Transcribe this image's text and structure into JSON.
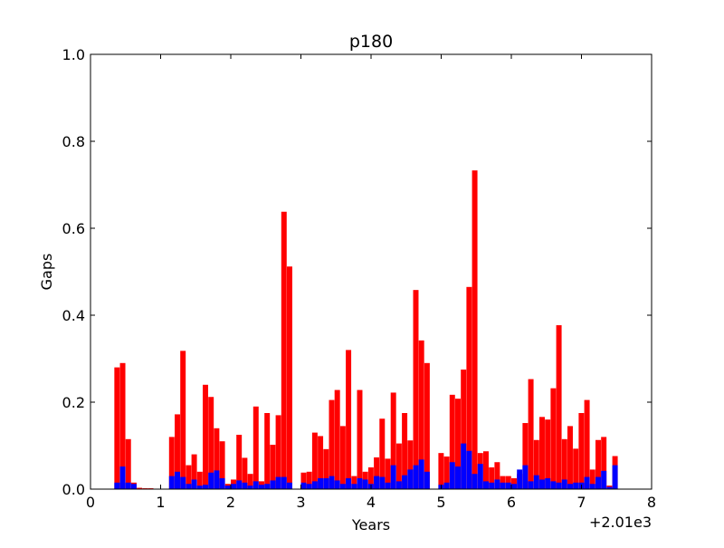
{
  "chart_data": {
    "type": "bar",
    "title": "p180",
    "xlabel": "Years",
    "ylabel": "Gaps",
    "x_offset_label": "+2.01e3",
    "xlim": [
      0,
      8
    ],
    "ylim": [
      0,
      1.0
    ],
    "x_ticks": [
      0,
      1,
      2,
      3,
      4,
      5,
      6,
      7,
      8
    ],
    "x_tick_labels": [
      "0",
      "1",
      "2",
      "3",
      "4",
      "5",
      "6",
      "7",
      "8"
    ],
    "y_ticks": [
      0.0,
      0.2,
      0.4,
      0.6,
      0.8,
      1.0
    ],
    "y_tick_labels": [
      "0.0",
      "0.2",
      "0.4",
      "0.6",
      "0.8",
      "1.0"
    ],
    "bin_width": 0.077,
    "grid": false,
    "series": [
      {
        "color": "#ff0000",
        "points": [
          [
            0.34,
            0.28
          ],
          [
            0.42,
            0.29
          ],
          [
            0.5,
            0.115
          ],
          [
            0.58,
            0.015
          ],
          [
            0.66,
            0.003
          ],
          [
            0.74,
            0.002
          ],
          [
            0.82,
            0.002
          ],
          [
            1.12,
            0.12
          ],
          [
            1.2,
            0.172
          ],
          [
            1.28,
            0.318
          ],
          [
            1.36,
            0.055
          ],
          [
            1.44,
            0.08
          ],
          [
            1.52,
            0.04
          ],
          [
            1.6,
            0.24
          ],
          [
            1.68,
            0.212
          ],
          [
            1.76,
            0.14
          ],
          [
            1.84,
            0.11
          ],
          [
            1.92,
            0.012
          ],
          [
            2.0,
            0.022
          ],
          [
            2.08,
            0.125
          ],
          [
            2.16,
            0.072
          ],
          [
            2.24,
            0.035
          ],
          [
            2.32,
            0.19
          ],
          [
            2.4,
            0.018
          ],
          [
            2.48,
            0.175
          ],
          [
            2.56,
            0.102
          ],
          [
            2.64,
            0.17
          ],
          [
            2.72,
            0.638
          ],
          [
            2.8,
            0.512
          ],
          [
            3.0,
            0.038
          ],
          [
            3.08,
            0.04
          ],
          [
            3.16,
            0.13
          ],
          [
            3.24,
            0.122
          ],
          [
            3.32,
            0.092
          ],
          [
            3.4,
            0.205
          ],
          [
            3.48,
            0.228
          ],
          [
            3.56,
            0.145
          ],
          [
            3.64,
            0.32
          ],
          [
            3.72,
            0.03
          ],
          [
            3.8,
            0.228
          ],
          [
            3.88,
            0.04
          ],
          [
            3.96,
            0.05
          ],
          [
            4.04,
            0.073
          ],
          [
            4.12,
            0.162
          ],
          [
            4.2,
            0.07
          ],
          [
            4.28,
            0.222
          ],
          [
            4.36,
            0.105
          ],
          [
            4.44,
            0.175
          ],
          [
            4.52,
            0.112
          ],
          [
            4.6,
            0.458
          ],
          [
            4.68,
            0.342
          ],
          [
            4.76,
            0.29
          ],
          [
            4.96,
            0.083
          ],
          [
            5.04,
            0.075
          ],
          [
            5.12,
            0.217
          ],
          [
            5.2,
            0.208
          ],
          [
            5.28,
            0.275
          ],
          [
            5.36,
            0.465
          ],
          [
            5.44,
            0.733
          ],
          [
            5.52,
            0.083
          ],
          [
            5.6,
            0.087
          ],
          [
            5.68,
            0.05
          ],
          [
            5.76,
            0.062
          ],
          [
            5.84,
            0.03
          ],
          [
            5.92,
            0.03
          ],
          [
            6.0,
            0.025
          ],
          [
            6.08,
            0.035
          ],
          [
            6.16,
            0.152
          ],
          [
            6.24,
            0.253
          ],
          [
            6.32,
            0.113
          ],
          [
            6.4,
            0.166
          ],
          [
            6.48,
            0.16
          ],
          [
            6.56,
            0.232
          ],
          [
            6.64,
            0.377
          ],
          [
            6.72,
            0.115
          ],
          [
            6.8,
            0.145
          ],
          [
            6.88,
            0.093
          ],
          [
            6.96,
            0.175
          ],
          [
            7.04,
            0.205
          ],
          [
            7.12,
            0.045
          ],
          [
            7.2,
            0.113
          ],
          [
            7.28,
            0.12
          ],
          [
            7.36,
            0.008
          ],
          [
            7.44,
            0.076
          ]
        ]
      },
      {
        "color": "#0000ff",
        "points": [
          [
            0.34,
            0.015
          ],
          [
            0.42,
            0.052
          ],
          [
            0.5,
            0.015
          ],
          [
            0.58,
            0.012
          ],
          [
            1.12,
            0.03
          ],
          [
            1.2,
            0.04
          ],
          [
            1.28,
            0.028
          ],
          [
            1.36,
            0.012
          ],
          [
            1.44,
            0.022
          ],
          [
            1.52,
            0.008
          ],
          [
            1.6,
            0.01
          ],
          [
            1.68,
            0.038
          ],
          [
            1.76,
            0.043
          ],
          [
            1.84,
            0.025
          ],
          [
            1.92,
            0.008
          ],
          [
            2.0,
            0.012
          ],
          [
            2.08,
            0.02
          ],
          [
            2.16,
            0.015
          ],
          [
            2.24,
            0.008
          ],
          [
            2.32,
            0.018
          ],
          [
            2.4,
            0.01
          ],
          [
            2.48,
            0.012
          ],
          [
            2.56,
            0.02
          ],
          [
            2.64,
            0.028
          ],
          [
            2.72,
            0.028
          ],
          [
            2.8,
            0.015
          ],
          [
            3.0,
            0.015
          ],
          [
            3.08,
            0.012
          ],
          [
            3.16,
            0.018
          ],
          [
            3.24,
            0.025
          ],
          [
            3.32,
            0.025
          ],
          [
            3.4,
            0.03
          ],
          [
            3.48,
            0.02
          ],
          [
            3.56,
            0.012
          ],
          [
            3.64,
            0.025
          ],
          [
            3.72,
            0.012
          ],
          [
            3.8,
            0.025
          ],
          [
            3.88,
            0.022
          ],
          [
            3.96,
            0.012
          ],
          [
            4.04,
            0.03
          ],
          [
            4.12,
            0.028
          ],
          [
            4.2,
            0.015
          ],
          [
            4.28,
            0.055
          ],
          [
            4.36,
            0.018
          ],
          [
            4.44,
            0.032
          ],
          [
            4.52,
            0.045
          ],
          [
            4.6,
            0.055
          ],
          [
            4.68,
            0.068
          ],
          [
            4.76,
            0.04
          ],
          [
            4.96,
            0.01
          ],
          [
            5.04,
            0.015
          ],
          [
            5.12,
            0.062
          ],
          [
            5.2,
            0.052
          ],
          [
            5.28,
            0.105
          ],
          [
            5.36,
            0.088
          ],
          [
            5.44,
            0.035
          ],
          [
            5.52,
            0.058
          ],
          [
            5.6,
            0.018
          ],
          [
            5.68,
            0.015
          ],
          [
            5.76,
            0.022
          ],
          [
            5.84,
            0.015
          ],
          [
            5.92,
            0.015
          ],
          [
            6.0,
            0.012
          ],
          [
            6.08,
            0.045
          ],
          [
            6.16,
            0.055
          ],
          [
            6.24,
            0.018
          ],
          [
            6.32,
            0.032
          ],
          [
            6.4,
            0.022
          ],
          [
            6.48,
            0.025
          ],
          [
            6.56,
            0.018
          ],
          [
            6.64,
            0.015
          ],
          [
            6.72,
            0.022
          ],
          [
            6.8,
            0.012
          ],
          [
            6.88,
            0.015
          ],
          [
            6.96,
            0.015
          ],
          [
            7.04,
            0.028
          ],
          [
            7.12,
            0.012
          ],
          [
            7.2,
            0.028
          ],
          [
            7.28,
            0.042
          ],
          [
            7.36,
            0.005
          ],
          [
            7.44,
            0.055
          ]
        ]
      }
    ]
  }
}
